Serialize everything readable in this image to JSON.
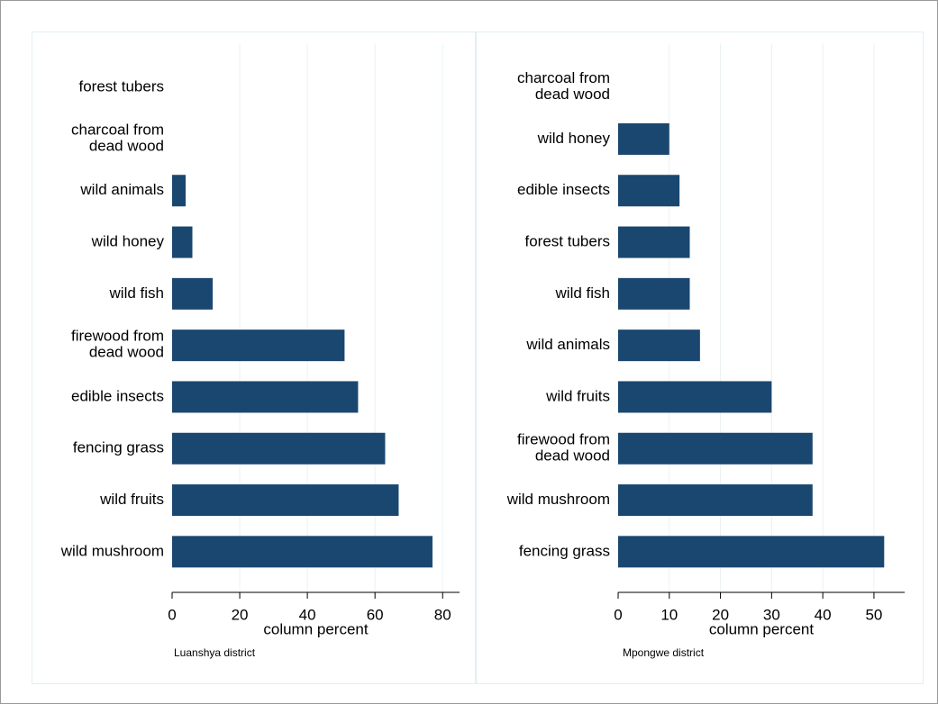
{
  "chart_data": [
    {
      "type": "bar",
      "orientation": "horizontal",
      "note": "Luanshya district",
      "xlabel": "column percent",
      "categories": [
        "forest tubers",
        "charcoal from dead wood",
        "wild animals",
        "wild honey",
        "wild fish",
        "firewood from dead wood",
        "edible insects",
        "fencing grass",
        "wild fruits",
        "wild mushroom"
      ],
      "values": [
        0,
        0,
        4,
        6,
        12,
        51,
        55,
        63,
        67,
        77
      ],
      "color": "#1a476f",
      "xlim": [
        0,
        85
      ],
      "xticks": [
        0,
        20,
        40,
        60,
        80
      ],
      "grid": true
    },
    {
      "type": "bar",
      "orientation": "horizontal",
      "note": "Mpongwe district",
      "xlabel": "column percent",
      "categories": [
        "charcoal from dead wood",
        "wild honey",
        "edible insects",
        "forest tubers",
        "wild fish",
        "wild animals",
        "wild fruits",
        "firewood from dead wood",
        "wild mushroom",
        "fencing grass"
      ],
      "values": [
        0,
        10,
        12,
        14,
        14,
        16,
        30,
        38,
        38,
        52
      ],
      "color": "#1a476f",
      "xlim": [
        0,
        56
      ],
      "xticks": [
        0,
        10,
        20,
        30,
        40,
        50
      ],
      "grid": true
    }
  ]
}
